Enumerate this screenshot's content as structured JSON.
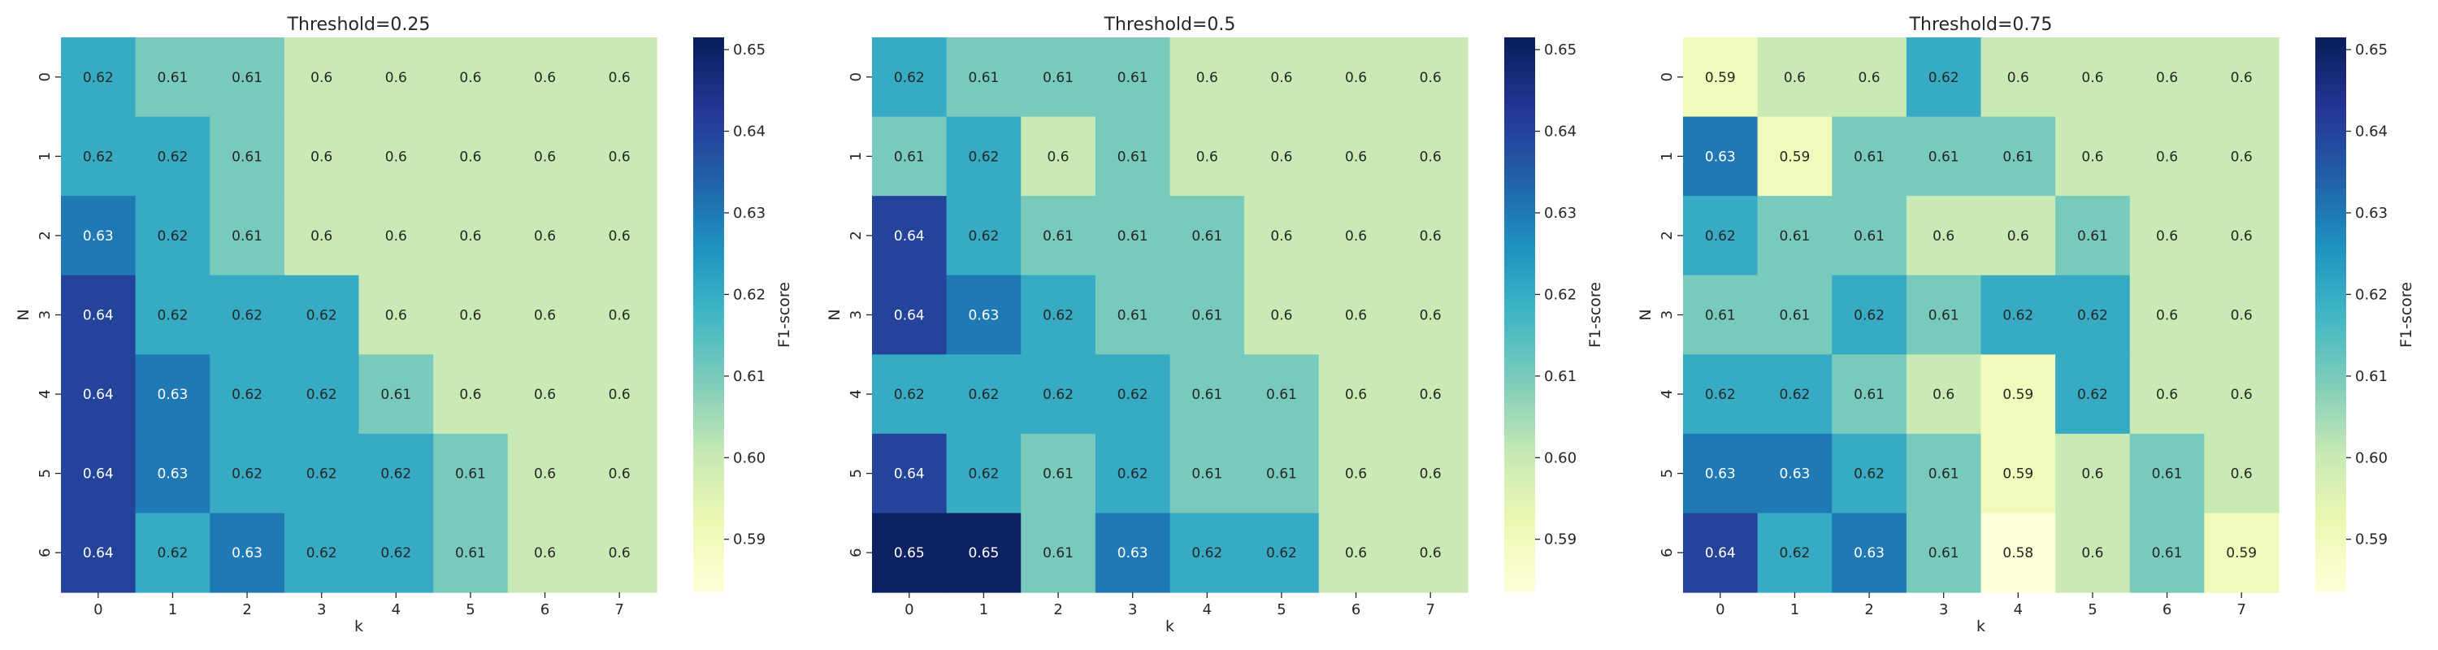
{
  "chart_data": [
    {
      "type": "heatmap",
      "title": "Threshold=0.25",
      "xlabel": "k",
      "ylabel": "N",
      "x_tick_labels": [
        "0",
        "1",
        "2",
        "3",
        "4",
        "5",
        "6",
        "7"
      ],
      "y_tick_labels": [
        "0",
        "1",
        "2",
        "3",
        "4",
        "5",
        "6"
      ],
      "values": [
        [
          0.62,
          0.61,
          0.61,
          0.6,
          0.6,
          0.6,
          0.6,
          0.6
        ],
        [
          0.62,
          0.62,
          0.61,
          0.6,
          0.6,
          0.6,
          0.6,
          0.6
        ],
        [
          0.63,
          0.62,
          0.61,
          0.6,
          0.6,
          0.6,
          0.6,
          0.6
        ],
        [
          0.64,
          0.62,
          0.62,
          0.62,
          0.6,
          0.6,
          0.6,
          0.6
        ],
        [
          0.64,
          0.63,
          0.62,
          0.62,
          0.61,
          0.6,
          0.6,
          0.6
        ],
        [
          0.64,
          0.63,
          0.62,
          0.62,
          0.62,
          0.61,
          0.6,
          0.6
        ],
        [
          0.64,
          0.62,
          0.63,
          0.62,
          0.62,
          0.61,
          0.6,
          0.6
        ]
      ],
      "colorbar": {
        "label": "F1-score",
        "ticks": [
          "0.59",
          "0.60",
          "0.61",
          "0.62",
          "0.63",
          "0.64",
          "0.65"
        ],
        "range": [
          0.5835,
          0.6515
        ]
      },
      "colormap": "YlGnBu"
    },
    {
      "type": "heatmap",
      "title": "Threshold=0.5",
      "xlabel": "k",
      "ylabel": "N",
      "x_tick_labels": [
        "0",
        "1",
        "2",
        "3",
        "4",
        "5",
        "6",
        "7"
      ],
      "y_tick_labels": [
        "0",
        "1",
        "2",
        "3",
        "4",
        "5",
        "6"
      ],
      "values": [
        [
          0.62,
          0.61,
          0.61,
          0.61,
          0.6,
          0.6,
          0.6,
          0.6
        ],
        [
          0.61,
          0.62,
          0.6,
          0.61,
          0.6,
          0.6,
          0.6,
          0.6
        ],
        [
          0.64,
          0.62,
          0.61,
          0.61,
          0.61,
          0.6,
          0.6,
          0.6
        ],
        [
          0.64,
          0.63,
          0.62,
          0.61,
          0.61,
          0.6,
          0.6,
          0.6
        ],
        [
          0.62,
          0.62,
          0.62,
          0.62,
          0.61,
          0.61,
          0.6,
          0.6
        ],
        [
          0.64,
          0.62,
          0.61,
          0.62,
          0.61,
          0.61,
          0.6,
          0.6
        ],
        [
          0.65,
          0.65,
          0.61,
          0.63,
          0.62,
          0.62,
          0.6,
          0.6
        ]
      ],
      "colorbar": {
        "label": "F1-score",
        "ticks": [
          "0.59",
          "0.60",
          "0.61",
          "0.62",
          "0.63",
          "0.64",
          "0.65"
        ],
        "range": [
          0.5835,
          0.6515
        ]
      },
      "colormap": "YlGnBu"
    },
    {
      "type": "heatmap",
      "title": "Threshold=0.75",
      "xlabel": "k",
      "ylabel": "N",
      "x_tick_labels": [
        "0",
        "1",
        "2",
        "3",
        "4",
        "5",
        "6",
        "7"
      ],
      "y_tick_labels": [
        "0",
        "1",
        "2",
        "3",
        "4",
        "5",
        "6"
      ],
      "values": [
        [
          0.59,
          0.6,
          0.6,
          0.62,
          0.6,
          0.6,
          0.6,
          0.6
        ],
        [
          0.63,
          0.59,
          0.61,
          0.61,
          0.61,
          0.6,
          0.6,
          0.6
        ],
        [
          0.62,
          0.61,
          0.61,
          0.6,
          0.6,
          0.61,
          0.6,
          0.6
        ],
        [
          0.61,
          0.61,
          0.62,
          0.61,
          0.62,
          0.62,
          0.6,
          0.6
        ],
        [
          0.62,
          0.62,
          0.61,
          0.6,
          0.59,
          0.62,
          0.6,
          0.6
        ],
        [
          0.63,
          0.63,
          0.62,
          0.61,
          0.59,
          0.6,
          0.61,
          0.6
        ],
        [
          0.64,
          0.62,
          0.63,
          0.61,
          0.58,
          0.6,
          0.61,
          0.59
        ]
      ],
      "colorbar": {
        "label": "F1-score",
        "ticks": [
          "0.59",
          "0.60",
          "0.61",
          "0.62",
          "0.63",
          "0.64",
          "0.65"
        ],
        "range": [
          0.5835,
          0.6515
        ]
      },
      "colormap": "YlGnBu"
    }
  ]
}
